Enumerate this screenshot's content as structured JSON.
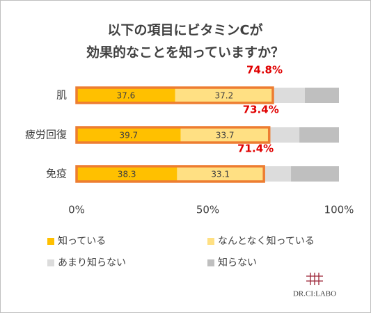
{
  "chart_data": {
    "type": "stacked-bar-horizontal",
    "title": [
      "以下の項目にビタミンCが",
      "効果的なことを知っていますか？"
    ],
    "categories": [
      "肌",
      "疲労回復",
      "免疫"
    ],
    "series": [
      {
        "name": "知っている",
        "color": "#ffc000",
        "values": [
          37.6,
          39.7,
          38.3
        ]
      },
      {
        "name": "なんとなく知っている",
        "color": "#ffe083",
        "values": [
          37.2,
          33.7,
          33.1
        ]
      },
      {
        "name": "あまり知らない",
        "color": "#dcdcdc",
        "values": [
          12.2,
          11.5,
          10.3
        ]
      },
      {
        "name": "知らない",
        "color": "#bfbfbf",
        "values": [
          13.0,
          15.1,
          18.3
        ]
      }
    ],
    "labeled_series": [
      0,
      1
    ],
    "highlight_color": "#ed7d31",
    "annotations": [
      "74.8%",
      "73.4%",
      "71.4%"
    ],
    "annotation_color": "#e00000",
    "xlim": [
      0,
      100
    ],
    "xticks": [
      {
        "value": 0,
        "label": "0%"
      },
      {
        "value": 50,
        "label": "50%"
      },
      {
        "value": 100,
        "label": "100%"
      }
    ],
    "grid": false,
    "legend": "bottom",
    "logo": "DR.CI:LABO"
  }
}
